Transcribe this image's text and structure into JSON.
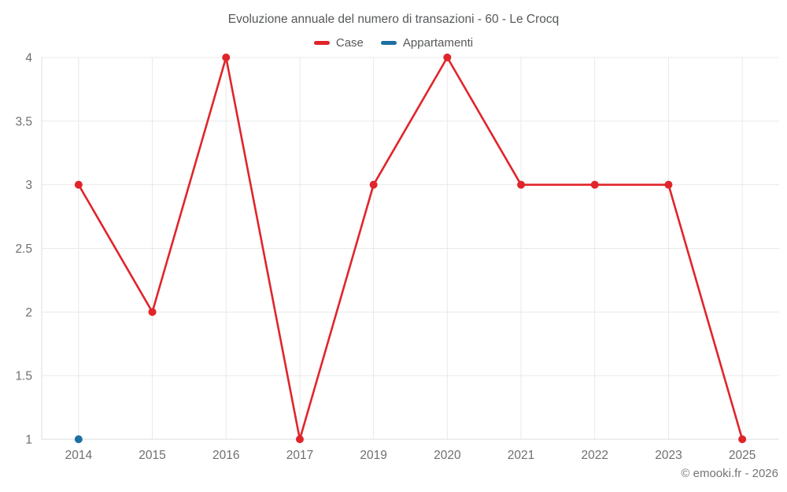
{
  "chart_data": {
    "type": "line",
    "title": "Evoluzione annuale del numero di transazioni - 60 - Le Crocq",
    "categories": [
      "2014",
      "2015",
      "2016",
      "2017",
      "2019",
      "2020",
      "2021",
      "2022",
      "2023",
      "2025"
    ],
    "series": [
      {
        "name": "Case",
        "color": "#e0252a",
        "values": [
          3,
          2,
          4,
          1,
          3,
          4,
          3,
          3,
          3,
          1
        ]
      },
      {
        "name": "Appartamenti",
        "color": "#1b6fa3",
        "values": [
          1,
          null,
          null,
          null,
          null,
          null,
          null,
          null,
          null,
          null
        ]
      }
    ],
    "ylim": [
      1,
      4
    ],
    "y_ticks": [
      1,
      1.5,
      2,
      2.5,
      3,
      3.5,
      4
    ],
    "xlabel": "",
    "ylabel": "",
    "grid": true,
    "legend_position": "top",
    "colors": {
      "grid": "#e9e9e9",
      "axis": "#dcdcdc",
      "tick_label": "#6f6f6f",
      "title": "#56585a"
    }
  },
  "footer": {
    "copyright": "© emooki.fr - 2026"
  }
}
